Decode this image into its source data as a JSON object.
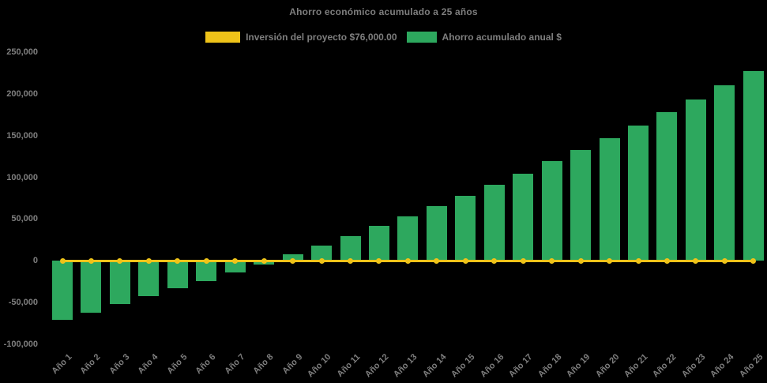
{
  "title": "Ahorro económico acumulado a 25 años",
  "legend": {
    "items": [
      {
        "label": "Inversión del proyecto $76,000.00",
        "color": "#EFC319",
        "series": "inversion"
      },
      {
        "label": "Ahorro acumulado anual $",
        "color": "#2DA85E",
        "series": "ahorro"
      }
    ]
  },
  "colors": {
    "background": "#000000",
    "text_gray": "#7E7E7E",
    "bar_green": "#2DA85E",
    "line_yellow": "#EFC319"
  },
  "chart_data": {
    "type": "bar",
    "title": "Ahorro económico acumulado a 25 años",
    "categories": [
      "Año 1",
      "Año 2",
      "Año 3",
      "Año 4",
      "Año 5",
      "Año 6",
      "Año 7",
      "Año 8",
      "Año 9",
      "Año 10",
      "Año 11",
      "Año 12",
      "Año 13",
      "Año 14",
      "Año 15",
      "Año 16",
      "Año 17",
      "Año 18",
      "Año 19",
      "Año 20",
      "Año 21",
      "Año 22",
      "Año 23",
      "Año 24",
      "Año 25"
    ],
    "series": [
      {
        "name": "Ahorro acumulado anual $",
        "type": "bar",
        "color": "#2DA85E",
        "values": [
          -71000,
          -62000,
          -52000,
          -42000,
          -33000,
          -24000,
          -14000,
          -4000,
          8000,
          18000,
          30000,
          42000,
          53000,
          66000,
          78000,
          91000,
          104000,
          119000,
          133000,
          147000,
          162000,
          178000,
          193000,
          210000,
          227000
        ]
      },
      {
        "name": "Inversión del proyecto $76,000.00",
        "type": "line",
        "color": "#EFC319",
        "marker": "circle",
        "values": [
          0,
          0,
          0,
          0,
          0,
          0,
          0,
          0,
          0,
          0,
          0,
          0,
          0,
          0,
          0,
          0,
          0,
          0,
          0,
          0,
          0,
          0,
          0,
          0,
          0
        ]
      }
    ],
    "xlabel": "",
    "ylabel": "",
    "ylim": [
      -100000,
      250000
    ],
    "yticks": [
      {
        "value": 250000,
        "label": "250,000"
      },
      {
        "value": 200000,
        "label": "200,000"
      },
      {
        "value": 150000,
        "label": "150,000"
      },
      {
        "value": 100000,
        "label": "100,000"
      },
      {
        "value": 50000,
        "label": "50,000"
      },
      {
        "value": 0,
        "label": "0"
      },
      {
        "value": -50000,
        "label": "-50,000"
      },
      {
        "value": -100000,
        "label": "-100,000"
      }
    ],
    "grid": false,
    "legend_position": "top",
    "plot_background": "#000000"
  }
}
